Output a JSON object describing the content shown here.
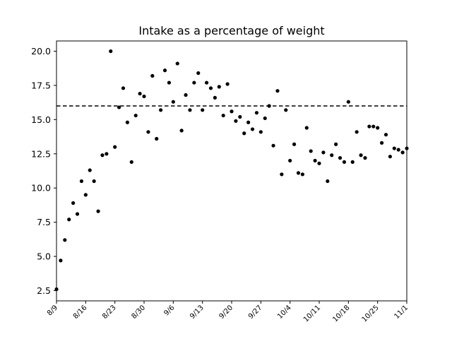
{
  "chart_data": {
    "type": "scatter",
    "title": "Intake as a percentage of weight",
    "xlabel": "",
    "ylabel": "",
    "x_start_date": "8/9",
    "xlim": [
      0,
      84
    ],
    "ylim": [
      1.75,
      20.75
    ],
    "yticks": [
      2.5,
      5.0,
      7.5,
      10.0,
      12.5,
      15.0,
      17.5,
      20.0
    ],
    "ytick_labels": [
      "2.5",
      "5.0",
      "7.5",
      "10.0",
      "12.5",
      "15.0",
      "17.5",
      "20.0"
    ],
    "xticks": [
      0,
      7,
      14,
      21,
      28,
      35,
      42,
      49,
      56,
      63,
      70,
      77,
      84
    ],
    "xtick_labels": [
      "8/9",
      "8/16",
      "8/23",
      "8/30",
      "9/6",
      "9/13",
      "9/20",
      "9/27",
      "10/4",
      "10/11",
      "10/18",
      "10/25",
      "11/1"
    ],
    "reference_line": {
      "y": 16.0,
      "style": "dashed",
      "color": "#000000"
    },
    "marker_color": "#000000",
    "grid": false,
    "series": [
      {
        "name": "",
        "x": [
          0,
          1,
          2,
          3,
          4,
          5,
          6,
          7,
          8,
          9,
          10,
          11,
          12,
          13,
          14,
          15,
          16,
          17,
          18,
          19,
          20,
          21,
          22,
          23,
          24,
          25,
          26,
          27,
          28,
          29,
          30,
          31,
          32,
          33,
          34,
          35,
          36,
          37,
          38,
          39,
          40,
          41,
          42,
          43,
          44,
          45,
          46,
          47,
          48,
          49,
          50,
          51,
          52,
          53,
          54,
          55,
          56,
          57,
          58,
          59,
          60,
          61,
          62,
          63,
          64,
          65,
          66,
          67,
          68,
          69,
          70,
          71,
          72,
          73,
          74,
          75,
          76,
          77,
          78,
          79,
          80,
          81,
          82,
          83,
          84
        ],
        "y": [
          2.6,
          4.7,
          6.2,
          7.7,
          8.9,
          8.1,
          10.5,
          9.5,
          11.3,
          10.5,
          8.3,
          12.4,
          12.5,
          20.0,
          13.0,
          15.9,
          17.3,
          14.8,
          11.9,
          15.3,
          16.9,
          16.7,
          14.1,
          18.2,
          13.6,
          15.7,
          18.6,
          17.7,
          16.3,
          19.1,
          14.2,
          16.8,
          15.7,
          17.7,
          18.4,
          15.7,
          17.7,
          17.3,
          16.6,
          17.4,
          15.3,
          17.6,
          15.6,
          14.9,
          15.2,
          14.0,
          14.8,
          14.3,
          15.5,
          14.1,
          15.1,
          16.0,
          13.1,
          17.1,
          11.0,
          15.7,
          12.0,
          13.2,
          11.1,
          11.0,
          14.4,
          12.7,
          12.0,
          11.8,
          12.6,
          10.5,
          12.4,
          13.2,
          12.2,
          11.9,
          16.3,
          11.9,
          14.1,
          12.4,
          12.2,
          14.5,
          14.5,
          14.4,
          13.3,
          13.9,
          12.3,
          12.9,
          12.8,
          12.6,
          12.9
        ]
      }
    ]
  }
}
